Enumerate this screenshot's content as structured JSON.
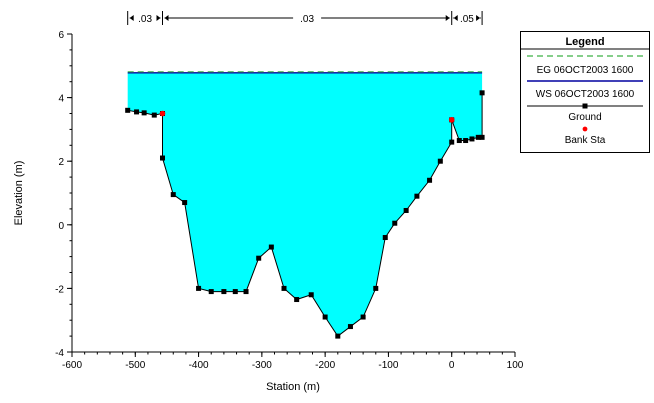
{
  "chart_data": {
    "type": "area",
    "title": "",
    "xlabel": "Station (m)",
    "ylabel": "Elevation (m)",
    "xlim": [
      -600,
      100
    ],
    "ylim": [
      -4,
      6
    ],
    "x_ticks": [
      "-600",
      "-500",
      "-400",
      "-300",
      "-200",
      "-100",
      "0",
      "100"
    ],
    "y_ticks": [
      "-4",
      "-2",
      "0",
      "2",
      "4",
      "6"
    ],
    "grid": false,
    "legend_position": "right",
    "colors": {
      "water": "#00ffff",
      "eg_line": "#3cb043",
      "ws_line": "#0000a0",
      "ground": "#000000",
      "bank_sta": "#ff0000"
    },
    "series": [
      {
        "name": "EG 06OCT2003 1600",
        "kind": "line",
        "y_const": 4.78,
        "x_range": [
          -512,
          48
        ]
      },
      {
        "name": "WS 06OCT2003 1600",
        "kind": "filled",
        "y_const": 4.78,
        "x_range": [
          -512,
          48
        ]
      },
      {
        "name": "Ground",
        "kind": "line-markers",
        "points": [
          [
            -512,
            3.6
          ],
          [
            -498,
            3.55
          ],
          [
            -486,
            3.52
          ],
          [
            -470,
            3.45
          ],
          [
            -457,
            3.5
          ],
          [
            -457,
            2.1
          ],
          [
            -440,
            0.95
          ],
          [
            -422,
            0.7
          ],
          [
            -400,
            -2.0
          ],
          [
            -380,
            -2.1
          ],
          [
            -360,
            -2.1
          ],
          [
            -342,
            -2.1
          ],
          [
            -325,
            -2.1
          ],
          [
            -305,
            -1.05
          ],
          [
            -285,
            -0.7
          ],
          [
            -265,
            -2.0
          ],
          [
            -245,
            -2.35
          ],
          [
            -222,
            -2.2
          ],
          [
            -200,
            -2.9
          ],
          [
            -180,
            -3.5
          ],
          [
            -160,
            -3.2
          ],
          [
            -140,
            -2.9
          ],
          [
            -120,
            -2.0
          ],
          [
            -105,
            -0.4
          ],
          [
            -90,
            0.05
          ],
          [
            -72,
            0.45
          ],
          [
            -55,
            0.9
          ],
          [
            -35,
            1.4
          ],
          [
            -18,
            2.0
          ],
          [
            0,
            2.6
          ],
          [
            0,
            3.3
          ],
          [
            12,
            2.65
          ],
          [
            22,
            2.65
          ],
          [
            32,
            2.7
          ],
          [
            42,
            2.75
          ],
          [
            48,
            2.75
          ],
          [
            48,
            4.15
          ]
        ]
      },
      {
        "name": "Bank Sta",
        "kind": "markers",
        "points": [
          [
            -457,
            3.5
          ],
          [
            0,
            3.3
          ]
        ]
      }
    ],
    "manning_n": {
      "labels": [
        ".03",
        ".03",
        ".05"
      ],
      "breaks": [
        -512,
        -457,
        0,
        48
      ]
    }
  },
  "legend": {
    "title": "Legend",
    "entries": [
      "EG 06OCT2003 1600",
      "WS 06OCT2003 1600",
      "Ground",
      "Bank Sta"
    ]
  }
}
